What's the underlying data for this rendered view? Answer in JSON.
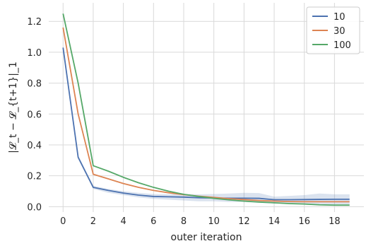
{
  "chart_data": {
    "type": "line",
    "xlabel": "outer iteration",
    "ylabel": "|𝓛_t − 𝓛_{t+1}|_1",
    "xlim": [
      -0.95,
      19.95
    ],
    "ylim": [
      -0.035,
      1.32
    ],
    "xticks": [
      0,
      2,
      4,
      6,
      8,
      10,
      12,
      14,
      16,
      18
    ],
    "yticks": [
      0.0,
      0.2,
      0.4,
      0.6,
      0.8,
      1.0,
      1.2
    ],
    "grid": true,
    "legend_position": "top-right",
    "x": [
      0,
      1,
      2,
      3,
      4,
      5,
      6,
      7,
      8,
      9,
      10,
      11,
      12,
      13,
      14,
      15,
      16,
      17,
      18,
      19
    ],
    "series": [
      {
        "name": "10",
        "color": "#4c72b0",
        "values": [
          1.03,
          0.32,
          0.125,
          0.105,
          0.088,
          0.075,
          0.066,
          0.064,
          0.062,
          0.058,
          0.056,
          0.055,
          0.055,
          0.054,
          0.045,
          0.045,
          0.046,
          0.047,
          0.048,
          0.048
        ],
        "band_low": [
          1.02,
          0.31,
          0.115,
          0.09,
          0.075,
          0.06,
          0.05,
          0.045,
          0.04,
          0.035,
          0.035,
          0.03,
          0.03,
          0.025,
          0.02,
          0.02,
          0.02,
          0.015,
          0.015,
          0.015
        ],
        "band_high": [
          1.04,
          0.33,
          0.135,
          0.115,
          0.1,
          0.09,
          0.082,
          0.08,
          0.082,
          0.08,
          0.082,
          0.085,
          0.09,
          0.088,
          0.065,
          0.07,
          0.075,
          0.085,
          0.08,
          0.08
        ]
      },
      {
        "name": "30",
        "color": "#dd8452",
        "values": [
          1.16,
          0.6,
          0.21,
          0.18,
          0.15,
          0.125,
          0.105,
          0.09,
          0.078,
          0.068,
          0.06,
          0.052,
          0.046,
          0.04,
          0.036,
          0.033,
          0.032,
          0.032,
          0.032,
          0.032
        ]
      },
      {
        "name": "100",
        "color": "#55a868",
        "values": [
          1.25,
          0.8,
          0.265,
          0.23,
          0.19,
          0.155,
          0.125,
          0.1,
          0.08,
          0.066,
          0.054,
          0.044,
          0.036,
          0.03,
          0.025,
          0.02,
          0.017,
          0.012,
          0.01,
          0.01
        ]
      }
    ]
  }
}
